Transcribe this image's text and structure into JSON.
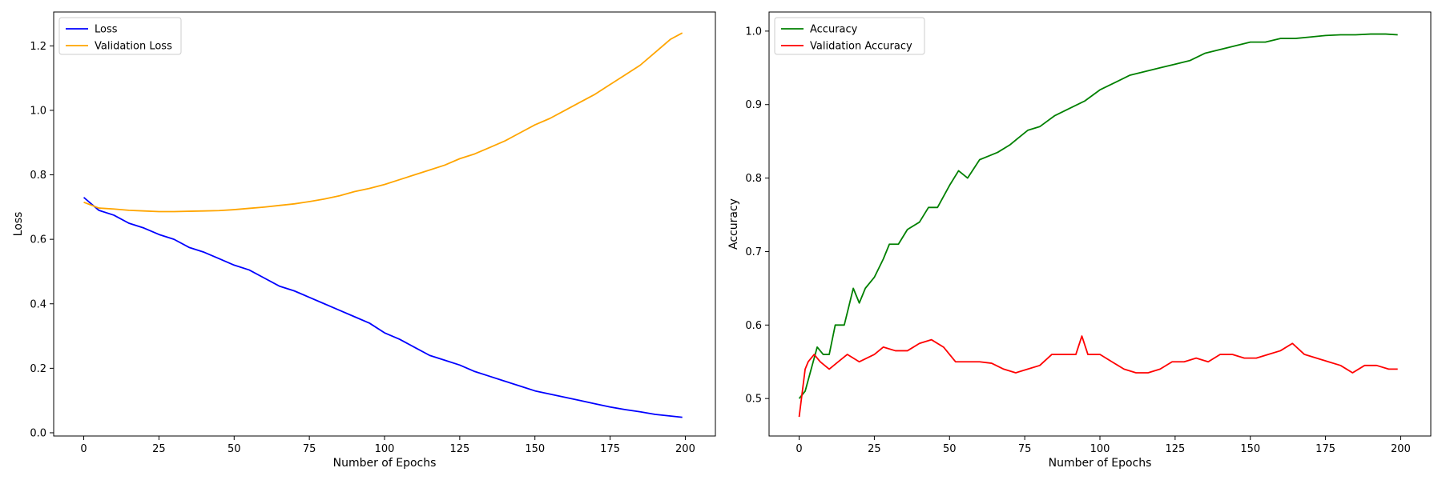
{
  "chart_data": [
    {
      "type": "line",
      "title": "",
      "xlabel": "Number of Epochs",
      "ylabel": "Loss",
      "xlim": [
        -10,
        210
      ],
      "ylim": [
        -0.01,
        1.305
      ],
      "xticks": [
        0,
        25,
        50,
        75,
        100,
        125,
        150,
        175,
        200
      ],
      "yticks": [
        0.0,
        0.2,
        0.4,
        0.6,
        0.8,
        1.0,
        1.2
      ],
      "ytick_labels": [
        "0.0",
        "0.2",
        "0.4",
        "0.6",
        "0.8",
        "1.0",
        "1.2"
      ],
      "grid": false,
      "legend_position": "top-left",
      "series": [
        {
          "name": "Loss",
          "color": "#0000ff",
          "x": [
            0,
            5,
            10,
            15,
            20,
            25,
            30,
            35,
            40,
            45,
            50,
            55,
            60,
            65,
            70,
            75,
            80,
            85,
            90,
            95,
            100,
            105,
            110,
            115,
            120,
            125,
            130,
            135,
            140,
            145,
            150,
            155,
            160,
            165,
            170,
            175,
            180,
            185,
            190,
            195,
            199
          ],
          "y": [
            0.73,
            0.69,
            0.675,
            0.65,
            0.635,
            0.615,
            0.6,
            0.575,
            0.56,
            0.54,
            0.52,
            0.505,
            0.48,
            0.455,
            0.44,
            0.42,
            0.4,
            0.38,
            0.36,
            0.34,
            0.31,
            0.29,
            0.265,
            0.24,
            0.225,
            0.21,
            0.19,
            0.175,
            0.16,
            0.145,
            0.13,
            0.12,
            0.11,
            0.1,
            0.09,
            0.08,
            0.072,
            0.065,
            0.057,
            0.052,
            0.048
          ]
        },
        {
          "name": "Validation Loss",
          "color": "#ffa500",
          "x": [
            0,
            5,
            10,
            15,
            20,
            25,
            30,
            35,
            40,
            45,
            50,
            55,
            60,
            65,
            70,
            75,
            80,
            85,
            90,
            95,
            100,
            105,
            110,
            115,
            120,
            125,
            130,
            135,
            140,
            145,
            150,
            155,
            160,
            165,
            170,
            175,
            180,
            185,
            190,
            195,
            199
          ],
          "y": [
            0.715,
            0.697,
            0.694,
            0.69,
            0.688,
            0.686,
            0.686,
            0.687,
            0.688,
            0.689,
            0.692,
            0.696,
            0.7,
            0.705,
            0.71,
            0.717,
            0.725,
            0.735,
            0.748,
            0.758,
            0.77,
            0.785,
            0.8,
            0.815,
            0.83,
            0.85,
            0.865,
            0.885,
            0.905,
            0.93,
            0.955,
            0.975,
            1.0,
            1.025,
            1.05,
            1.08,
            1.11,
            1.14,
            1.18,
            1.22,
            1.24
          ]
        }
      ]
    },
    {
      "type": "line",
      "title": "",
      "xlabel": "Number of Epochs",
      "ylabel": "Accuracy",
      "xlim": [
        -10,
        210
      ],
      "ylim": [
        0.449,
        1.026
      ],
      "xticks": [
        0,
        25,
        50,
        75,
        100,
        125,
        150,
        175,
        200
      ],
      "yticks": [
        0.5,
        0.6,
        0.7,
        0.8,
        0.9,
        1.0
      ],
      "ytick_labels": [
        "0.5",
        "0.6",
        "0.7",
        "0.8",
        "0.9",
        "1.0"
      ],
      "grid": false,
      "legend_position": "top-left",
      "series": [
        {
          "name": "Accuracy",
          "color": "#008000",
          "x": [
            0,
            2,
            4,
            6,
            8,
            10,
            12,
            15,
            18,
            20,
            22,
            25,
            28,
            30,
            33,
            36,
            40,
            43,
            46,
            50,
            53,
            56,
            60,
            63,
            66,
            70,
            73,
            76,
            80,
            85,
            90,
            95,
            100,
            105,
            110,
            115,
            120,
            125,
            130,
            135,
            140,
            145,
            150,
            155,
            160,
            165,
            170,
            175,
            180,
            185,
            190,
            195,
            199
          ],
          "y": [
            0.5,
            0.51,
            0.54,
            0.57,
            0.56,
            0.56,
            0.6,
            0.6,
            0.65,
            0.63,
            0.65,
            0.665,
            0.69,
            0.71,
            0.71,
            0.73,
            0.74,
            0.76,
            0.76,
            0.79,
            0.81,
            0.8,
            0.825,
            0.83,
            0.835,
            0.845,
            0.855,
            0.865,
            0.87,
            0.885,
            0.895,
            0.905,
            0.92,
            0.93,
            0.94,
            0.945,
            0.95,
            0.955,
            0.96,
            0.97,
            0.975,
            0.98,
            0.985,
            0.985,
            0.99,
            0.99,
            0.992,
            0.994,
            0.995,
            0.995,
            0.996,
            0.996,
            0.995
          ]
        },
        {
          "name": "Validation Accuracy",
          "color": "#ff0000",
          "x": [
            0,
            2,
            3,
            5,
            7,
            10,
            13,
            16,
            20,
            25,
            28,
            32,
            36,
            40,
            44,
            48,
            52,
            56,
            60,
            64,
            68,
            72,
            76,
            80,
            84,
            88,
            92,
            94,
            96,
            100,
            104,
            108,
            112,
            116,
            120,
            124,
            128,
            132,
            136,
            140,
            144,
            148,
            152,
            156,
            160,
            164,
            168,
            172,
            176,
            180,
            184,
            188,
            192,
            196,
            199
          ],
          "y": [
            0.475,
            0.54,
            0.55,
            0.56,
            0.55,
            0.54,
            0.55,
            0.56,
            0.55,
            0.56,
            0.57,
            0.565,
            0.565,
            0.575,
            0.58,
            0.57,
            0.55,
            0.55,
            0.55,
            0.548,
            0.54,
            0.535,
            0.54,
            0.545,
            0.56,
            0.56,
            0.56,
            0.585,
            0.56,
            0.56,
            0.55,
            0.54,
            0.535,
            0.535,
            0.54,
            0.55,
            0.55,
            0.555,
            0.55,
            0.56,
            0.56,
            0.555,
            0.555,
            0.56,
            0.565,
            0.575,
            0.56,
            0.555,
            0.55,
            0.545,
            0.535,
            0.545,
            0.545,
            0.54,
            0.54
          ]
        }
      ]
    }
  ]
}
